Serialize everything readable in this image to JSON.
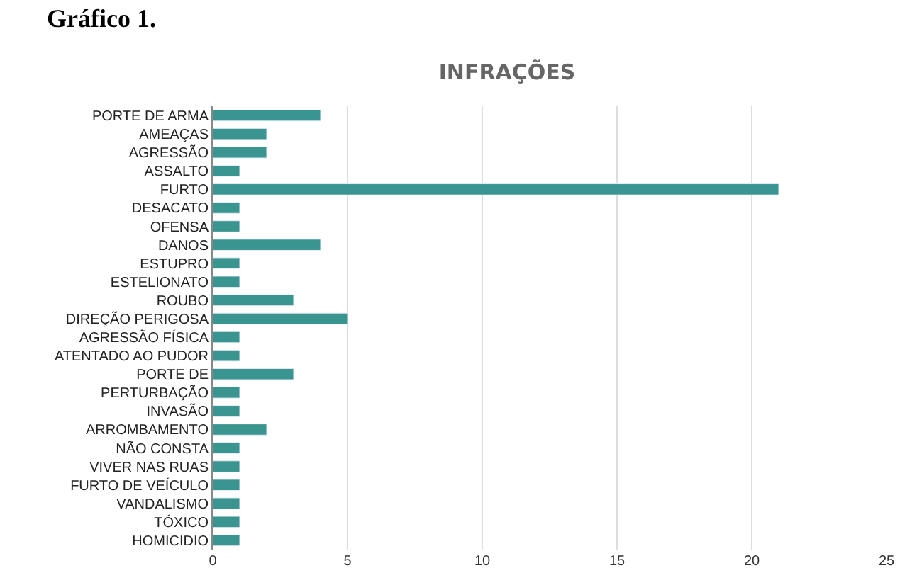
{
  "chart_data": {
    "type": "bar",
    "orientation": "horizontal",
    "title": "INFRAÇÕES",
    "annotations": [
      "Gráfico 1."
    ],
    "categories": [
      "PORTE DE ARMA",
      "AMEAÇAS",
      "AGRESSÃO",
      "ASSALTO",
      "FURTO",
      "DESACATO",
      "OFENSA",
      "DANOS",
      "ESTUPRO",
      "ESTELIONATO",
      "ROUBO",
      "DIREÇÃO PERIGOSA",
      "AGRESSÃO FÍSICA",
      "ATENTADO AO PUDOR",
      "PORTE DE",
      "PERTURBAÇÃO",
      "INVASÃO",
      "ARROMBAMENTO",
      "NÃO CONSTA",
      "VIVER NAS RUAS",
      "FURTO DE VEÍCULO",
      "VANDALISMO",
      "TÓXICO",
      "HOMICIDIO"
    ],
    "values": [
      4,
      2,
      2,
      1,
      21,
      1,
      1,
      4,
      1,
      1,
      3,
      5,
      1,
      1,
      3,
      1,
      1,
      2,
      1,
      1,
      1,
      1,
      1,
      1
    ],
    "color": "#3a9490",
    "xlim": [
      0,
      25
    ],
    "xticks": [
      0,
      5,
      10,
      15,
      20,
      25
    ],
    "grid": "x"
  }
}
